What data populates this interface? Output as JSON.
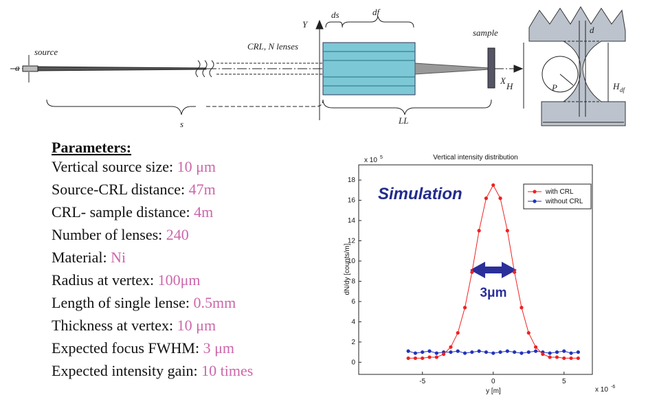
{
  "diagram": {
    "labels": {
      "a": "a",
      "source": "source",
      "crl": "CRL, N lenses",
      "y_axis": "Y",
      "ds": "ds",
      "df": "df",
      "sample": "sample",
      "x_axis": "X",
      "h": "H",
      "s": "s",
      "ll": "LL",
      "d": "d",
      "p": "P",
      "h_df": "H",
      "h_df_sub": "df"
    }
  },
  "parameters": {
    "title": "Parameters:",
    "items": [
      {
        "label": "Vertical source size: ",
        "value": "10 μm"
      },
      {
        "label": "Source-CRL distance: ",
        "value": "47m"
      },
      {
        "label": "CRL- sample distance: ",
        "value": "4m"
      },
      {
        "label": "Number of lenses: ",
        "value": "240"
      },
      {
        "label": "Material: ",
        "value": "Ni"
      },
      {
        "label": "Radius at vertex: ",
        "value": "100μm"
      },
      {
        "label": "Length of single lense: ",
        "value": "0.5mm"
      },
      {
        "label": "Thickness at vertex: ",
        "value": "10 μm"
      },
      {
        "label": "Expected focus FWHM: ",
        "value": "3 μm"
      },
      {
        "label": "Expected intensity gain: ",
        "value": "10 times"
      }
    ]
  },
  "chart_data": {
    "type": "line",
    "title": "Vertical intensity distribution",
    "xlabel": "y [m]",
    "ylabel": "dN/dy [counts/m]",
    "x_multiplier": "x 10",
    "x_exponent": "-6",
    "y_multiplier": "x 10",
    "y_exponent": "5",
    "annotations": {
      "simulation": "Simulation",
      "fwhm": "3μm"
    },
    "x": [
      -6,
      -5.5,
      -5,
      -4.5,
      -4,
      -3.5,
      -3,
      -2.5,
      -2,
      -1.5,
      -1,
      -0.5,
      0,
      0.5,
      1,
      1.5,
      2,
      2.5,
      3,
      3.5,
      4,
      4.5,
      5,
      5.5,
      6
    ],
    "series": [
      {
        "name": "with CRL",
        "color": "#ee2222",
        "values": [
          0.4,
          0.4,
          0.4,
          0.5,
          0.5,
          0.8,
          1.5,
          2.9,
          5.4,
          8.9,
          13.0,
          16.2,
          17.5,
          16.2,
          13.0,
          8.9,
          5.4,
          2.9,
          1.5,
          0.8,
          0.5,
          0.5,
          0.4,
          0.4,
          0.4
        ]
      },
      {
        "name": "without CRL",
        "color": "#2233bb",
        "values": [
          1.1,
          0.9,
          1.0,
          1.1,
          0.9,
          1.0,
          1.0,
          1.1,
          0.9,
          1.0,
          1.1,
          1.0,
          0.9,
          1.0,
          1.1,
          1.0,
          0.9,
          1.0,
          1.1,
          1.0,
          0.9,
          1.0,
          1.1,
          0.9,
          1.0
        ]
      }
    ],
    "xlim": [
      -9.5,
      7
    ],
    "ylim": [
      -1.2,
      19.5
    ],
    "xticks": [
      -5,
      0,
      5
    ],
    "yticks": [
      0,
      2,
      4,
      6,
      8,
      10,
      12,
      14,
      16,
      18
    ],
    "legend": "upper right"
  }
}
